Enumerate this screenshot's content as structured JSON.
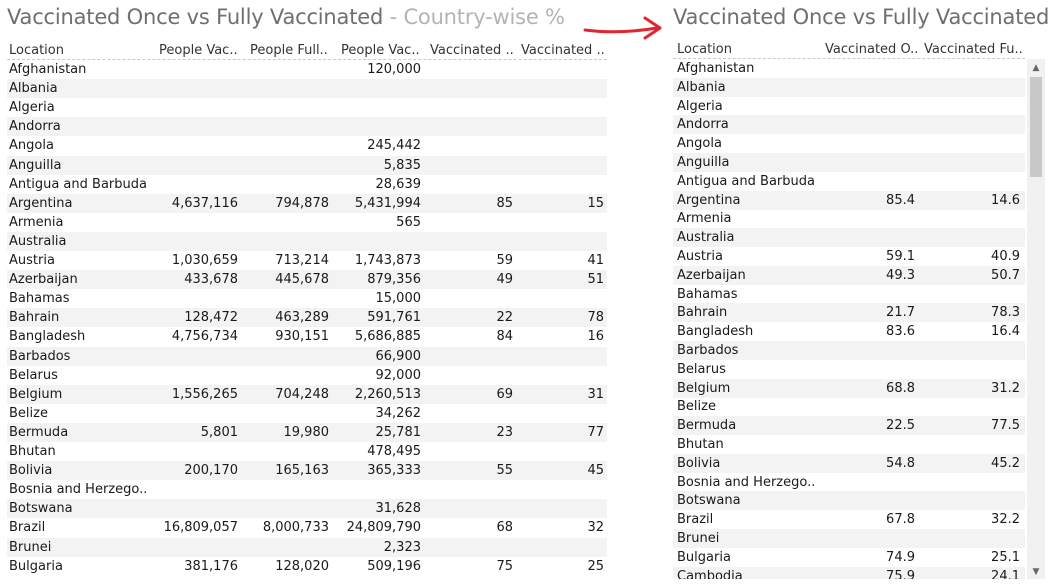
{
  "left": {
    "title_main": "Vaccinated Once vs Fully Vaccinated",
    "title_sep": " - ",
    "title_sub": "Country-wise %",
    "columns": [
      "Location",
      "People Vac..",
      "People Full..",
      "People Vac..",
      "Vaccinated ..",
      "Vaccinated .."
    ],
    "rows": [
      [
        "Afghanistan",
        "",
        "",
        "120,000",
        "",
        ""
      ],
      [
        "Albania",
        "",
        "",
        "",
        "",
        ""
      ],
      [
        "Algeria",
        "",
        "",
        "",
        "",
        ""
      ],
      [
        "Andorra",
        "",
        "",
        "",
        "",
        ""
      ],
      [
        "Angola",
        "",
        "",
        "245,442",
        "",
        ""
      ],
      [
        "Anguilla",
        "",
        "",
        "5,835",
        "",
        ""
      ],
      [
        "Antigua and Barbuda",
        "",
        "",
        "28,639",
        "",
        ""
      ],
      [
        "Argentina",
        "4,637,116",
        "794,878",
        "5,431,994",
        "85",
        "15"
      ],
      [
        "Armenia",
        "",
        "",
        "565",
        "",
        ""
      ],
      [
        "Australia",
        "",
        "",
        "",
        "",
        ""
      ],
      [
        "Austria",
        "1,030,659",
        "713,214",
        "1,743,873",
        "59",
        "41"
      ],
      [
        "Azerbaijan",
        "433,678",
        "445,678",
        "879,356",
        "49",
        "51"
      ],
      [
        "Bahamas",
        "",
        "",
        "15,000",
        "",
        ""
      ],
      [
        "Bahrain",
        "128,472",
        "463,289",
        "591,761",
        "22",
        "78"
      ],
      [
        "Bangladesh",
        "4,756,734",
        "930,151",
        "5,686,885",
        "84",
        "16"
      ],
      [
        "Barbados",
        "",
        "",
        "66,900",
        "",
        ""
      ],
      [
        "Belarus",
        "",
        "",
        "92,000",
        "",
        ""
      ],
      [
        "Belgium",
        "1,556,265",
        "704,248",
        "2,260,513",
        "69",
        "31"
      ],
      [
        "Belize",
        "",
        "",
        "34,262",
        "",
        ""
      ],
      [
        "Bermuda",
        "5,801",
        "19,980",
        "25,781",
        "23",
        "77"
      ],
      [
        "Bhutan",
        "",
        "",
        "478,495",
        "",
        ""
      ],
      [
        "Bolivia",
        "200,170",
        "165,163",
        "365,333",
        "55",
        "45"
      ],
      [
        "Bosnia and Herzego..",
        "",
        "",
        "",
        "",
        ""
      ],
      [
        "Botswana",
        "",
        "",
        "31,628",
        "",
        ""
      ],
      [
        "Brazil",
        "16,809,057",
        "8,000,733",
        "24,809,790",
        "68",
        "32"
      ],
      [
        "Brunei",
        "",
        "",
        "2,323",
        "",
        ""
      ],
      [
        "Bulgaria",
        "381,176",
        "128,020",
        "509,196",
        "75",
        "25"
      ]
    ]
  },
  "right": {
    "title": "Vaccinated Once vs Fully Vaccinated",
    "columns": [
      "Location",
      "Vaccinated O..",
      "Vaccinated Fu.."
    ],
    "rows": [
      [
        "Afghanistan",
        "",
        ""
      ],
      [
        "Albania",
        "",
        ""
      ],
      [
        "Algeria",
        "",
        ""
      ],
      [
        "Andorra",
        "",
        ""
      ],
      [
        "Angola",
        "",
        ""
      ],
      [
        "Anguilla",
        "",
        ""
      ],
      [
        "Antigua and Barbuda",
        "",
        ""
      ],
      [
        "Argentina",
        "85.4",
        "14.6"
      ],
      [
        "Armenia",
        "",
        ""
      ],
      [
        "Australia",
        "",
        ""
      ],
      [
        "Austria",
        "59.1",
        "40.9"
      ],
      [
        "Azerbaijan",
        "49.3",
        "50.7"
      ],
      [
        "Bahamas",
        "",
        ""
      ],
      [
        "Bahrain",
        "21.7",
        "78.3"
      ],
      [
        "Bangladesh",
        "83.6",
        "16.4"
      ],
      [
        "Barbados",
        "",
        ""
      ],
      [
        "Belarus",
        "",
        ""
      ],
      [
        "Belgium",
        "68.8",
        "31.2"
      ],
      [
        "Belize",
        "",
        ""
      ],
      [
        "Bermuda",
        "22.5",
        "77.5"
      ],
      [
        "Bhutan",
        "",
        ""
      ],
      [
        "Bolivia",
        "54.8",
        "45.2"
      ],
      [
        "Bosnia and Herzego..",
        "",
        ""
      ],
      [
        "Botswana",
        "",
        ""
      ],
      [
        "Brazil",
        "67.8",
        "32.2"
      ],
      [
        "Brunei",
        "",
        ""
      ],
      [
        "Bulgaria",
        "74.9",
        "25.1"
      ],
      [
        "Cambodia",
        "75.9",
        "24.1"
      ]
    ]
  },
  "colors": {
    "arrow": "#e0262e",
    "title": "#6f6f6f",
    "subtitle": "#b4b4b4",
    "band": "#f3f3f3"
  },
  "icons": {
    "arrow": "red-arrow-icon",
    "scroll_up": "chevron-up-icon",
    "scroll_down": "chevron-down-icon"
  }
}
